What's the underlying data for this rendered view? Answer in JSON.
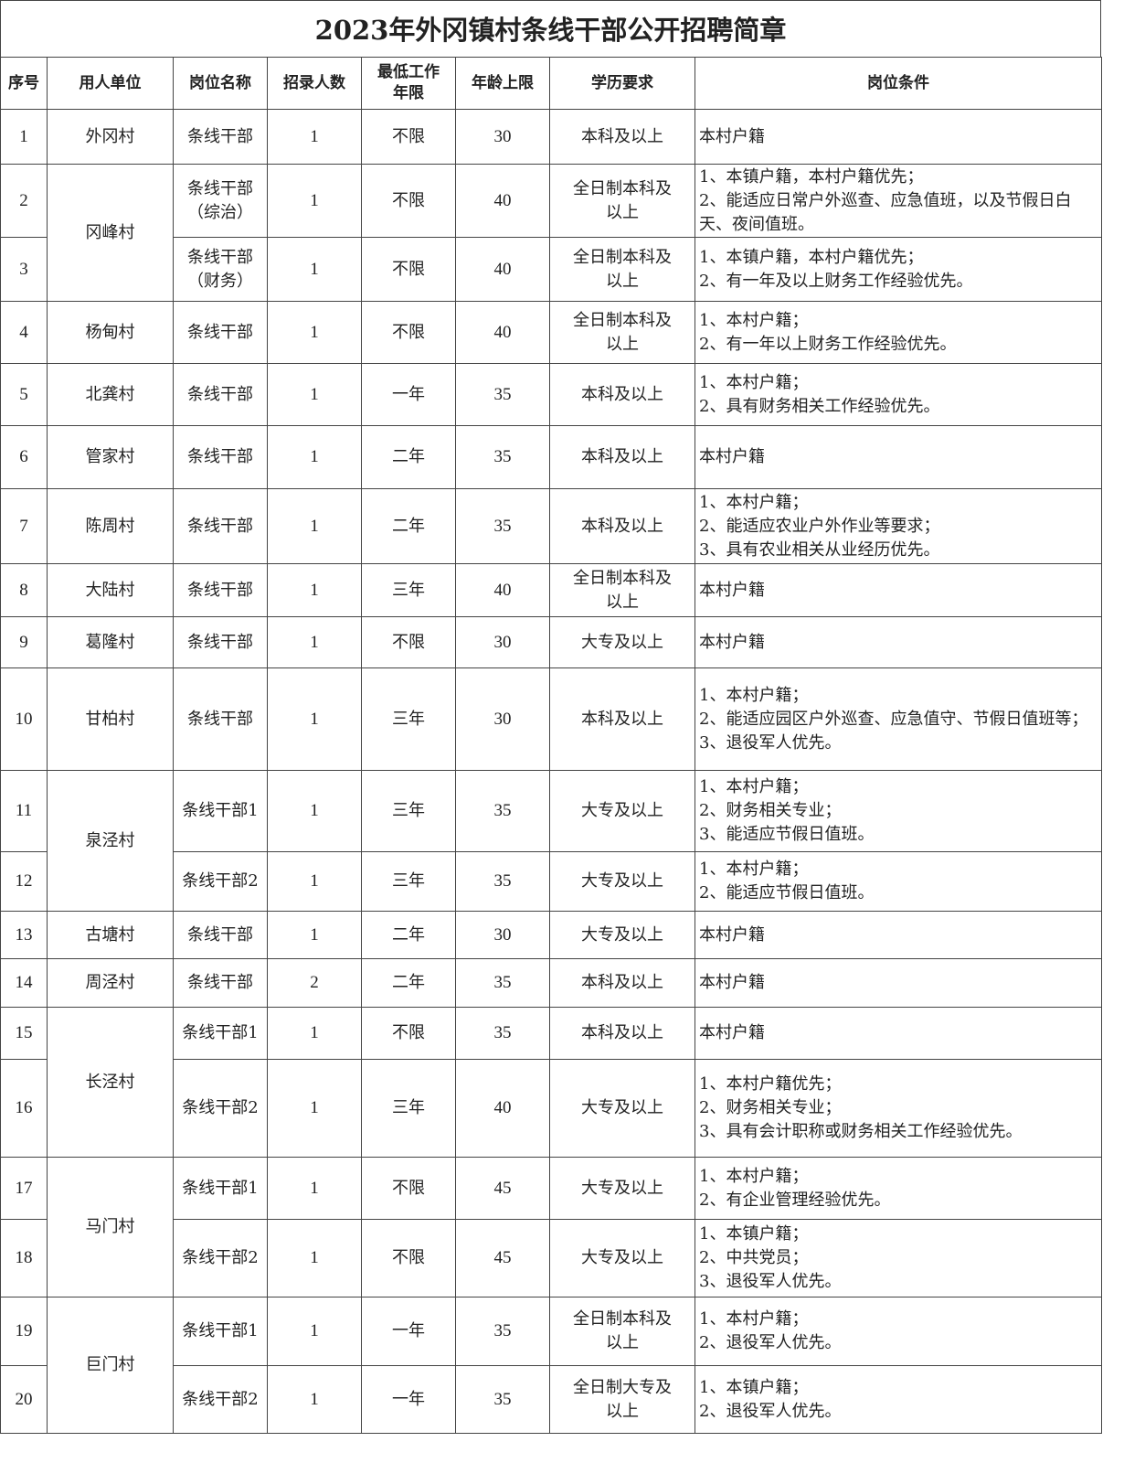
{
  "title": "2023年外冈镇村条线干部公开招聘简章",
  "headers": [
    "序号",
    "用人单位",
    "岗位名称",
    "招录人数",
    "最低工作年限",
    "年龄上限",
    "学历要求",
    "岗位条件"
  ],
  "rows": [
    {
      "no": "1",
      "unit": "外冈村",
      "position": "条线干部",
      "count": "1",
      "years": "不限",
      "age": "30",
      "edu": "本科及以上",
      "conditions": [
        "本村户籍"
      ]
    },
    {
      "no": "2",
      "unit": "冈峰村",
      "position": "条线干部（综治）",
      "count": "1",
      "years": "不限",
      "age": "40",
      "edu": "全日制本科及以上",
      "conditions": [
        "1、本镇户籍，本村户籍优先；",
        "2、能适应日常户外巡查、应急值班，以及节假日白天、夜间值班。"
      ]
    },
    {
      "no": "3",
      "unit": "冈峰村",
      "position": "条线干部（财务）",
      "count": "1",
      "years": "不限",
      "age": "40",
      "edu": "全日制本科及以上",
      "conditions": [
        "1、本镇户籍，本村户籍优先；",
        "2、有一年及以上财务工作经验优先。"
      ]
    },
    {
      "no": "4",
      "unit": "杨甸村",
      "position": "条线干部",
      "count": "1",
      "years": "不限",
      "age": "40",
      "edu": "全日制本科及以上",
      "conditions": [
        "1、本村户籍；",
        "2、有一年以上财务工作经验优先。"
      ]
    },
    {
      "no": "5",
      "unit": "北龚村",
      "position": "条线干部",
      "count": "1",
      "years": "一年",
      "age": "35",
      "edu": "本科及以上",
      "conditions": [
        "1、本村户籍；",
        "2、具有财务相关工作经验优先。"
      ]
    },
    {
      "no": "6",
      "unit": "管家村",
      "position": "条线干部",
      "count": "1",
      "years": "二年",
      "age": "35",
      "edu": "本科及以上",
      "conditions": [
        "本村户籍"
      ]
    },
    {
      "no": "7",
      "unit": "陈周村",
      "position": "条线干部",
      "count": "1",
      "years": "二年",
      "age": "35",
      "edu": "本科及以上",
      "conditions": [
        "1、本村户籍；",
        "2、能适应农业户外作业等要求；",
        "3、具有农业相关从业经历优先。"
      ]
    },
    {
      "no": "8",
      "unit": "大陆村",
      "position": "条线干部",
      "count": "1",
      "years": "三年",
      "age": "40",
      "edu": "全日制本科及以上",
      "conditions": [
        "本村户籍"
      ]
    },
    {
      "no": "9",
      "unit": "葛隆村",
      "position": "条线干部",
      "count": "1",
      "years": "不限",
      "age": "30",
      "edu": "大专及以上",
      "conditions": [
        "本村户籍"
      ]
    },
    {
      "no": "10",
      "unit": "甘柏村",
      "position": "条线干部",
      "count": "1",
      "years": "三年",
      "age": "30",
      "edu": "本科及以上",
      "conditions": [
        "1、本村户籍；",
        "2、能适应园区户外巡查、应急值守、节假日值班等；",
        "3、退役军人优先。"
      ]
    },
    {
      "no": "11",
      "unit": "泉泾村",
      "position": "条线干部1",
      "count": "1",
      "years": "三年",
      "age": "35",
      "edu": "大专及以上",
      "conditions": [
        "1、本村户籍；",
        "2、财务相关专业；",
        "3、能适应节假日值班。"
      ]
    },
    {
      "no": "12",
      "unit": "泉泾村",
      "position": "条线干部2",
      "count": "1",
      "years": "三年",
      "age": "35",
      "edu": "大专及以上",
      "conditions": [
        "1、本村户籍；",
        "2、能适应节假日值班。"
      ]
    },
    {
      "no": "13",
      "unit": "古塘村",
      "position": "条线干部",
      "count": "1",
      "years": "二年",
      "age": "30",
      "edu": "大专及以上",
      "conditions": [
        "本村户籍"
      ]
    },
    {
      "no": "14",
      "unit": "周泾村",
      "position": "条线干部",
      "count": "2",
      "years": "二年",
      "age": "35",
      "edu": "本科及以上",
      "conditions": [
        "本村户籍"
      ]
    },
    {
      "no": "15",
      "unit": "长泾村",
      "position": "条线干部1",
      "count": "1",
      "years": "不限",
      "age": "35",
      "edu": "本科及以上",
      "conditions": [
        "本村户籍"
      ]
    },
    {
      "no": "16",
      "unit": "长泾村",
      "position": "条线干部2",
      "count": "1",
      "years": "三年",
      "age": "40",
      "edu": "大专及以上",
      "conditions": [
        "1、本村户籍优先；",
        "2、财务相关专业；",
        "3、具有会计职称或财务相关工作经验优先。"
      ]
    },
    {
      "no": "17",
      "unit": "马门村",
      "position": "条线干部1",
      "count": "1",
      "years": "不限",
      "age": "45",
      "edu": "大专及以上",
      "conditions": [
        "1、本村户籍；",
        "2、有企业管理经验优先。"
      ]
    },
    {
      "no": "18",
      "unit": "马门村",
      "position": "条线干部2",
      "count": "1",
      "years": "不限",
      "age": "45",
      "edu": "大专及以上",
      "conditions": [
        "1、本镇户籍；",
        "2、中共党员；",
        "3、退役军人优先。"
      ]
    },
    {
      "no": "19",
      "unit": "巨门村",
      "position": "条线干部1",
      "count": "1",
      "years": "一年",
      "age": "35",
      "edu": "全日制本科及以上",
      "conditions": [
        "1、本村户籍；",
        "2、退役军人优先。"
      ]
    },
    {
      "no": "20",
      "unit": "巨门村",
      "position": "条线干部2",
      "count": "1",
      "years": "一年",
      "age": "35",
      "edu": "全日制大专及以上",
      "conditions": [
        "1、本镇户籍；",
        "2、退役军人优先。"
      ]
    }
  ]
}
